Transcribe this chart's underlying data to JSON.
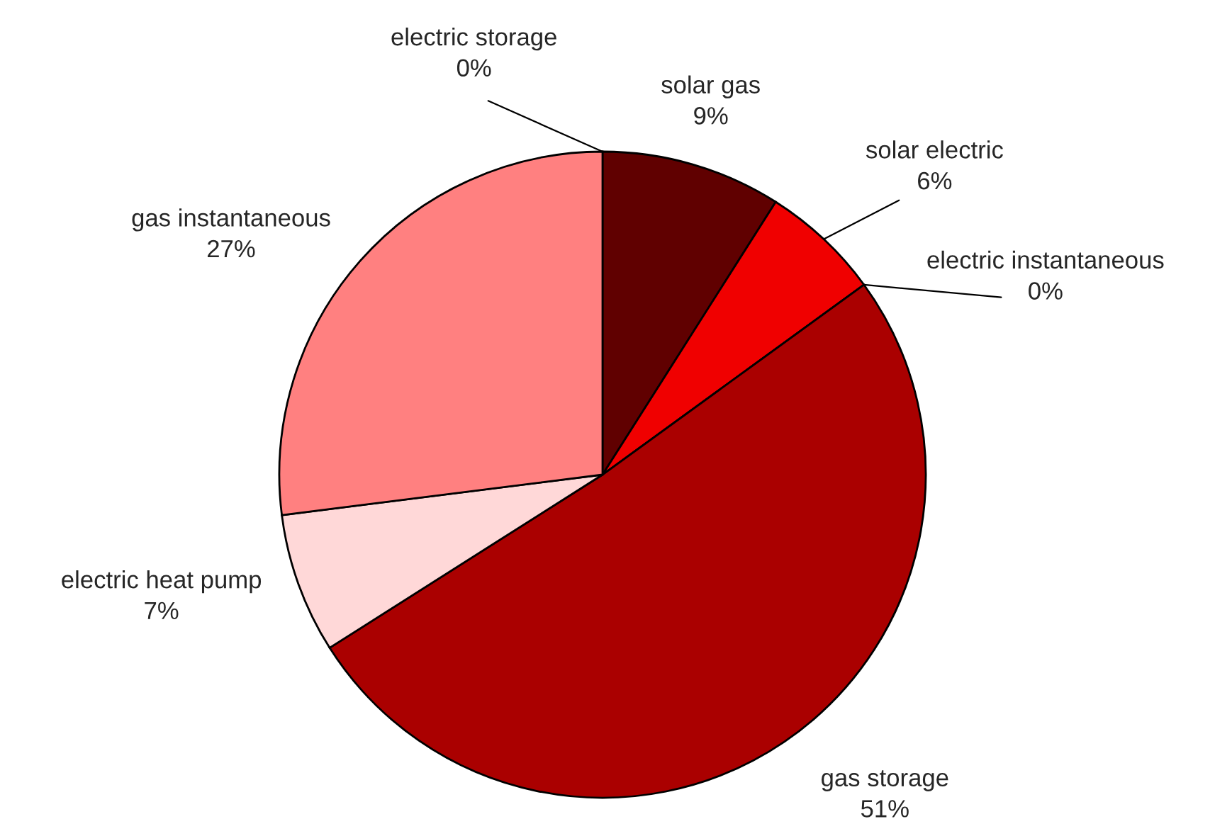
{
  "chart_data": {
    "type": "pie",
    "categories": [
      "electric storage",
      "solar gas",
      "solar electric",
      "electric instantaneous",
      "gas storage",
      "electric heat pump",
      "gas instantaneous"
    ],
    "values": [
      0,
      9,
      6,
      0,
      51,
      7,
      27
    ],
    "value_labels": [
      "0%",
      "9%",
      "6%",
      "0%",
      "51%",
      "7%",
      "27%"
    ],
    "colors": [
      "#800000",
      "#600000",
      "#f00000",
      "#c00000",
      "#aa0000",
      "#ffd8d8",
      "#ff8080"
    ],
    "legend": false
  }
}
